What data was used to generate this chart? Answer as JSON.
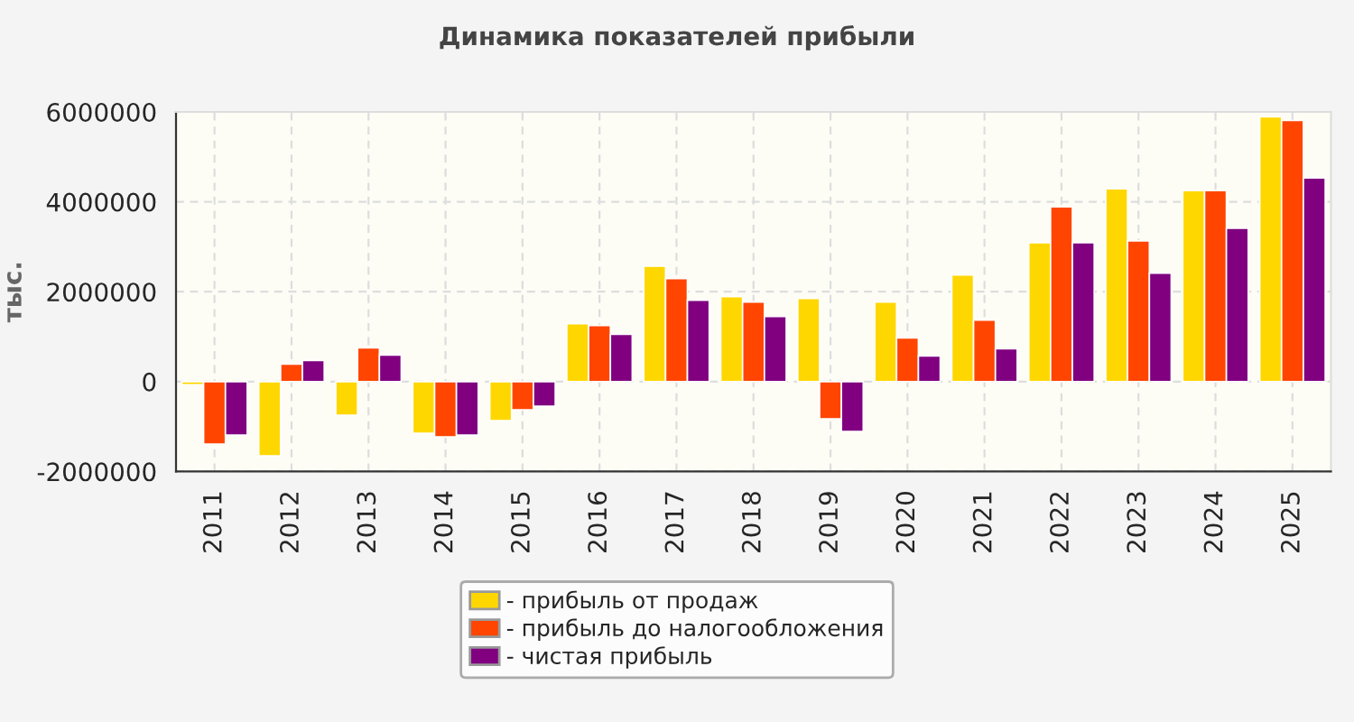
{
  "chart_data": {
    "type": "bar",
    "title": "Динамика показателей прибыли",
    "ylabel": "тыс.",
    "categories": [
      "2011",
      "2012",
      "2013",
      "2014",
      "2015",
      "2016",
      "2017",
      "2018",
      "2019",
      "2020",
      "2021",
      "2022",
      "2023",
      "2024",
      "2025"
    ],
    "series": [
      {
        "name": "- прибыль от продаж",
        "color": "#ffd700",
        "values": [
          -70000,
          -1650000,
          -750000,
          -1150000,
          -870000,
          1290000,
          2570000,
          1890000,
          1850000,
          1770000,
          2370000,
          3090000,
          4290000,
          4250000,
          5890000
        ]
      },
      {
        "name": "- прибыль до налогообложения",
        "color": "#ff4500",
        "values": [
          -1390000,
          390000,
          750000,
          -1230000,
          -630000,
          1250000,
          2290000,
          1770000,
          -830000,
          970000,
          1370000,
          3890000,
          3130000,
          4250000,
          5810000
        ]
      },
      {
        "name": "- чистая прибыль",
        "color": "#800080",
        "values": [
          -1190000,
          470000,
          590000,
          -1190000,
          -550000,
          1050000,
          1810000,
          1450000,
          -1110000,
          570000,
          730000,
          3090000,
          2410000,
          3410000,
          4530000
        ]
      }
    ],
    "ylim": [
      -2000000,
      6000000
    ],
    "yticks": [
      -2000000,
      0,
      2000000,
      4000000,
      6000000
    ],
    "grid": true,
    "legend": "bottom"
  }
}
